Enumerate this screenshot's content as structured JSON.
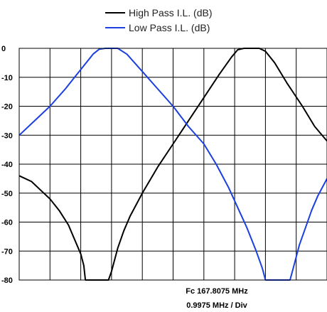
{
  "chart_data": {
    "type": "line",
    "title": "",
    "xlabel": "",
    "ylabel": "",
    "center_frequency_label": "Fc 167.8075 MHz",
    "scale_label": "0.9975 MHz / Div",
    "x_divisions": 10,
    "x_range": [
      -5,
      5
    ],
    "ylim": [
      -80,
      0
    ],
    "y_ticks": [
      0,
      -10,
      -20,
      -30,
      -40,
      -50,
      -60,
      -70,
      -80
    ],
    "grid": true,
    "legend_position": "top-right",
    "series": [
      {
        "name": "High Pass I.L. (dB)",
        "color": "#000000",
        "points": [
          [
            -5.0,
            -44
          ],
          [
            -4.6,
            -46
          ],
          [
            -4.3,
            -49
          ],
          [
            -4.0,
            -52
          ],
          [
            -3.7,
            -56
          ],
          [
            -3.4,
            -61
          ],
          [
            -3.2,
            -66
          ],
          [
            -3.0,
            -71
          ],
          [
            -2.9,
            -75
          ],
          [
            -2.85,
            -80
          ],
          [
            -2.1,
            -80
          ],
          [
            -2.0,
            -77
          ],
          [
            -1.8,
            -69
          ],
          [
            -1.6,
            -63
          ],
          [
            -1.4,
            -58
          ],
          [
            -1.0,
            -50
          ],
          [
            -0.5,
            -41
          ],
          [
            0.0,
            -33
          ],
          [
            0.5,
            -25
          ],
          [
            1.0,
            -17
          ],
          [
            1.5,
            -9
          ],
          [
            1.9,
            -3
          ],
          [
            2.1,
            -0.5
          ],
          [
            2.3,
            0
          ],
          [
            2.8,
            0
          ],
          [
            3.0,
            -1
          ],
          [
            3.3,
            -5
          ],
          [
            3.7,
            -12
          ],
          [
            4.2,
            -20
          ],
          [
            4.6,
            -27
          ],
          [
            5.0,
            -32
          ]
        ]
      },
      {
        "name": "Low Pass I.L. (dB)",
        "color": "#1c3fe0",
        "points": [
          [
            -5.0,
            -30
          ],
          [
            -4.5,
            -25
          ],
          [
            -4.0,
            -20
          ],
          [
            -3.5,
            -14
          ],
          [
            -3.2,
            -10
          ],
          [
            -2.9,
            -6
          ],
          [
            -2.6,
            -2
          ],
          [
            -2.4,
            -0.3
          ],
          [
            -2.2,
            0
          ],
          [
            -1.8,
            0
          ],
          [
            -1.5,
            -2
          ],
          [
            -1.0,
            -8
          ],
          [
            -0.5,
            -14
          ],
          [
            0.0,
            -20
          ],
          [
            0.5,
            -27
          ],
          [
            1.0,
            -33
          ],
          [
            1.4,
            -40
          ],
          [
            1.8,
            -48
          ],
          [
            2.1,
            -55
          ],
          [
            2.4,
            -62
          ],
          [
            2.7,
            -70
          ],
          [
            2.9,
            -76
          ],
          [
            3.0,
            -80
          ],
          [
            3.8,
            -80
          ],
          [
            3.9,
            -76
          ],
          [
            4.1,
            -68
          ],
          [
            4.3,
            -62
          ],
          [
            4.5,
            -56
          ],
          [
            4.7,
            -51
          ],
          [
            5.0,
            -45
          ]
        ]
      }
    ]
  }
}
